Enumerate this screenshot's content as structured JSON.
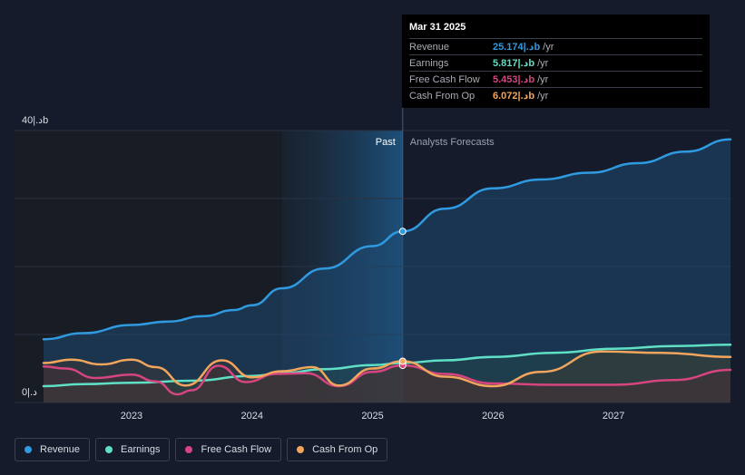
{
  "tooltip": {
    "date": "Mar 31 2025",
    "rows": [
      {
        "label": "Revenue",
        "value": "25.174|.دb",
        "unit": "/yr",
        "color": "#2f9ae0"
      },
      {
        "label": "Earnings",
        "value": "5.817|.دb",
        "unit": "/yr",
        "color": "#5fe0c6"
      },
      {
        "label": "Free Cash Flow",
        "value": "5.453|.دb",
        "unit": "/yr",
        "color": "#d6457f"
      },
      {
        "label": "Cash From Op",
        "value": "6.072|.دb",
        "unit": "/yr",
        "color": "#f2a55c"
      }
    ]
  },
  "legend": [
    {
      "label": "Revenue",
      "color": "#2f9ae0"
    },
    {
      "label": "Earnings",
      "color": "#5fe0c6"
    },
    {
      "label": "Free Cash Flow",
      "color": "#d6457f"
    },
    {
      "label": "Cash From Op",
      "color": "#f2a55c"
    }
  ],
  "chart_data": {
    "type": "line",
    "y_unit_labels": {
      "top": "40|.دb",
      "bottom": "0|.د"
    },
    "ylim": [
      0,
      40
    ],
    "xlim": [
      2022.27,
      2027.97
    ],
    "x_ticks": [
      {
        "value": 2023,
        "label": "2023"
      },
      {
        "value": 2024,
        "label": "2024"
      },
      {
        "value": 2025,
        "label": "2025"
      },
      {
        "value": 2026,
        "label": "2026"
      },
      {
        "value": 2027,
        "label": "2027"
      }
    ],
    "past_label": "Past",
    "forecast_label": "Analysts Forecasts",
    "split_x": 2025.25,
    "highlight_start_x": 2024.25,
    "grid": true,
    "series": [
      {
        "name": "Revenue",
        "color": "#2f9ae0",
        "x": [
          2022.27,
          2022.6,
          2023.0,
          2023.3,
          2023.6,
          2023.85,
          2024.0,
          2024.25,
          2024.6,
          2025.0,
          2025.25,
          2025.6,
          2026.0,
          2026.4,
          2026.8,
          2027.2,
          2027.6,
          2027.97
        ],
        "y": [
          9.3,
          10.2,
          11.4,
          11.9,
          12.7,
          13.6,
          14.3,
          16.8,
          19.7,
          23.0,
          25.174,
          28.5,
          31.5,
          32.8,
          33.8,
          35.2,
          36.9,
          38.7
        ]
      },
      {
        "name": "Earnings",
        "color": "#5fe0c6",
        "x": [
          2022.27,
          2022.6,
          2023.0,
          2023.5,
          2024.0,
          2024.25,
          2024.6,
          2025.0,
          2025.25,
          2025.6,
          2026.0,
          2026.5,
          2027.0,
          2027.5,
          2027.97
        ],
        "y": [
          2.4,
          2.7,
          2.9,
          3.2,
          3.9,
          4.3,
          4.9,
          5.5,
          5.817,
          6.2,
          6.7,
          7.3,
          7.9,
          8.3,
          8.5
        ]
      },
      {
        "name": "Free Cash Flow",
        "color": "#d6457f",
        "x": [
          2022.27,
          2022.45,
          2022.7,
          2023.0,
          2023.2,
          2023.38,
          2023.5,
          2023.72,
          2023.95,
          2024.2,
          2024.45,
          2024.72,
          2025.0,
          2025.25,
          2025.6,
          2026.0,
          2026.5,
          2027.0,
          2027.5,
          2027.97
        ],
        "y": [
          5.3,
          5.0,
          3.6,
          4.1,
          3.1,
          1.2,
          1.8,
          5.4,
          3.0,
          4.2,
          4.3,
          2.4,
          4.5,
          5.453,
          4.2,
          2.8,
          2.6,
          2.6,
          3.3,
          4.8
        ]
      },
      {
        "name": "Cash From Op",
        "color": "#f2a55c",
        "x": [
          2022.27,
          2022.5,
          2022.75,
          2023.0,
          2023.2,
          2023.45,
          2023.75,
          2024.0,
          2024.25,
          2024.5,
          2024.72,
          2025.0,
          2025.25,
          2025.6,
          2026.0,
          2026.4,
          2026.9,
          2027.4,
          2027.97
        ],
        "y": [
          5.8,
          6.3,
          5.6,
          6.3,
          5.2,
          2.5,
          6.2,
          3.7,
          4.6,
          5.2,
          2.5,
          5.0,
          6.072,
          3.8,
          2.4,
          4.5,
          7.5,
          7.3,
          6.7
        ]
      }
    ]
  }
}
